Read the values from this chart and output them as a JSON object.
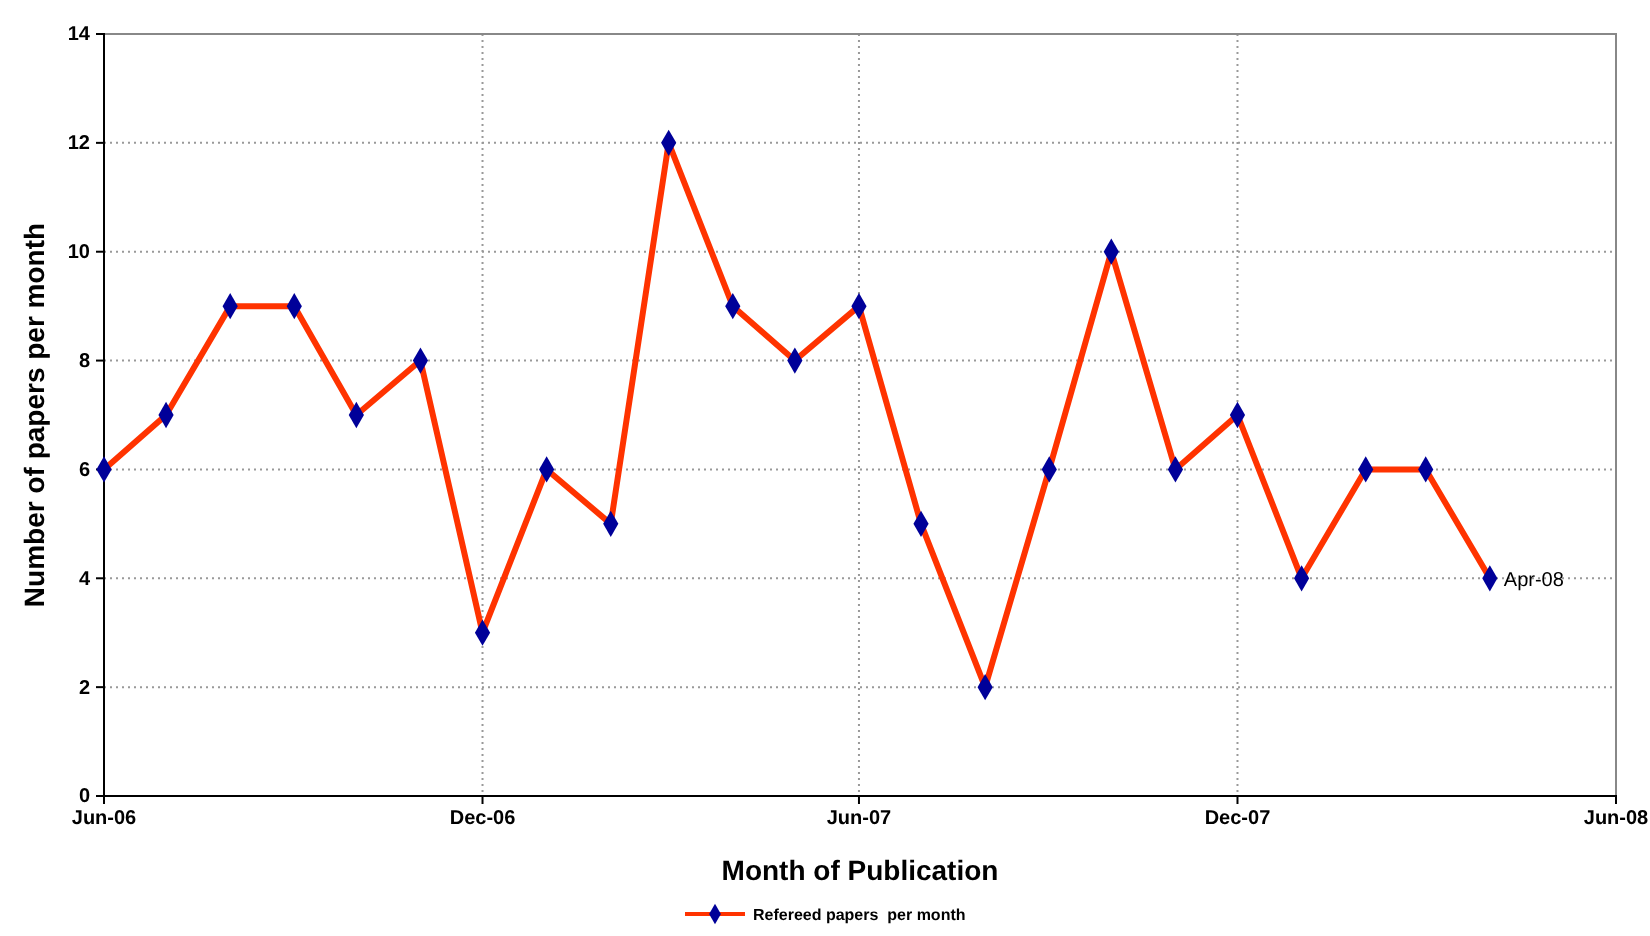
{
  "chart_data": {
    "type": "line",
    "xlabel": "Month of Publication",
    "ylabel": "Number of papers per month",
    "x": [
      "2006-06",
      "2006-07",
      "2006-08",
      "2006-09",
      "2006-10",
      "2006-11",
      "2006-12",
      "2007-01",
      "2007-02",
      "2007-03",
      "2007-04",
      "2007-05",
      "2007-06",
      "2007-07",
      "2007-08",
      "2007-09",
      "2007-10",
      "2007-11",
      "2007-12",
      "2008-01",
      "2008-02",
      "2008-03",
      "2008-04"
    ],
    "series": [
      {
        "name": "Refereed papers  per month",
        "color": "#ff3300",
        "values": [
          6,
          7,
          9,
          9,
          7,
          8,
          3,
          6,
          5,
          12,
          9,
          8,
          9,
          5,
          2,
          6,
          10,
          6,
          7,
          4,
          6,
          6,
          4
        ]
      }
    ],
    "xlim": [
      "2006-06",
      "2008-06"
    ],
    "xticks": [
      {
        "value": "2006-06",
        "label": "Jun-06"
      },
      {
        "value": "2006-12",
        "label": "Dec-06"
      },
      {
        "value": "2007-06",
        "label": "Jun-07"
      },
      {
        "value": "2007-12",
        "label": "Dec-07"
      },
      {
        "value": "2008-06",
        "label": "Jun-08"
      }
    ],
    "ylim": [
      0,
      14
    ],
    "yticks": [
      0,
      2,
      4,
      6,
      8,
      10,
      12,
      14
    ],
    "grid": true,
    "legend": "bottom",
    "marker": "diamond",
    "line_style": "solid",
    "annotations": [
      {
        "text": "Apr-08",
        "x": "2008-04",
        "y": 4
      }
    ]
  }
}
